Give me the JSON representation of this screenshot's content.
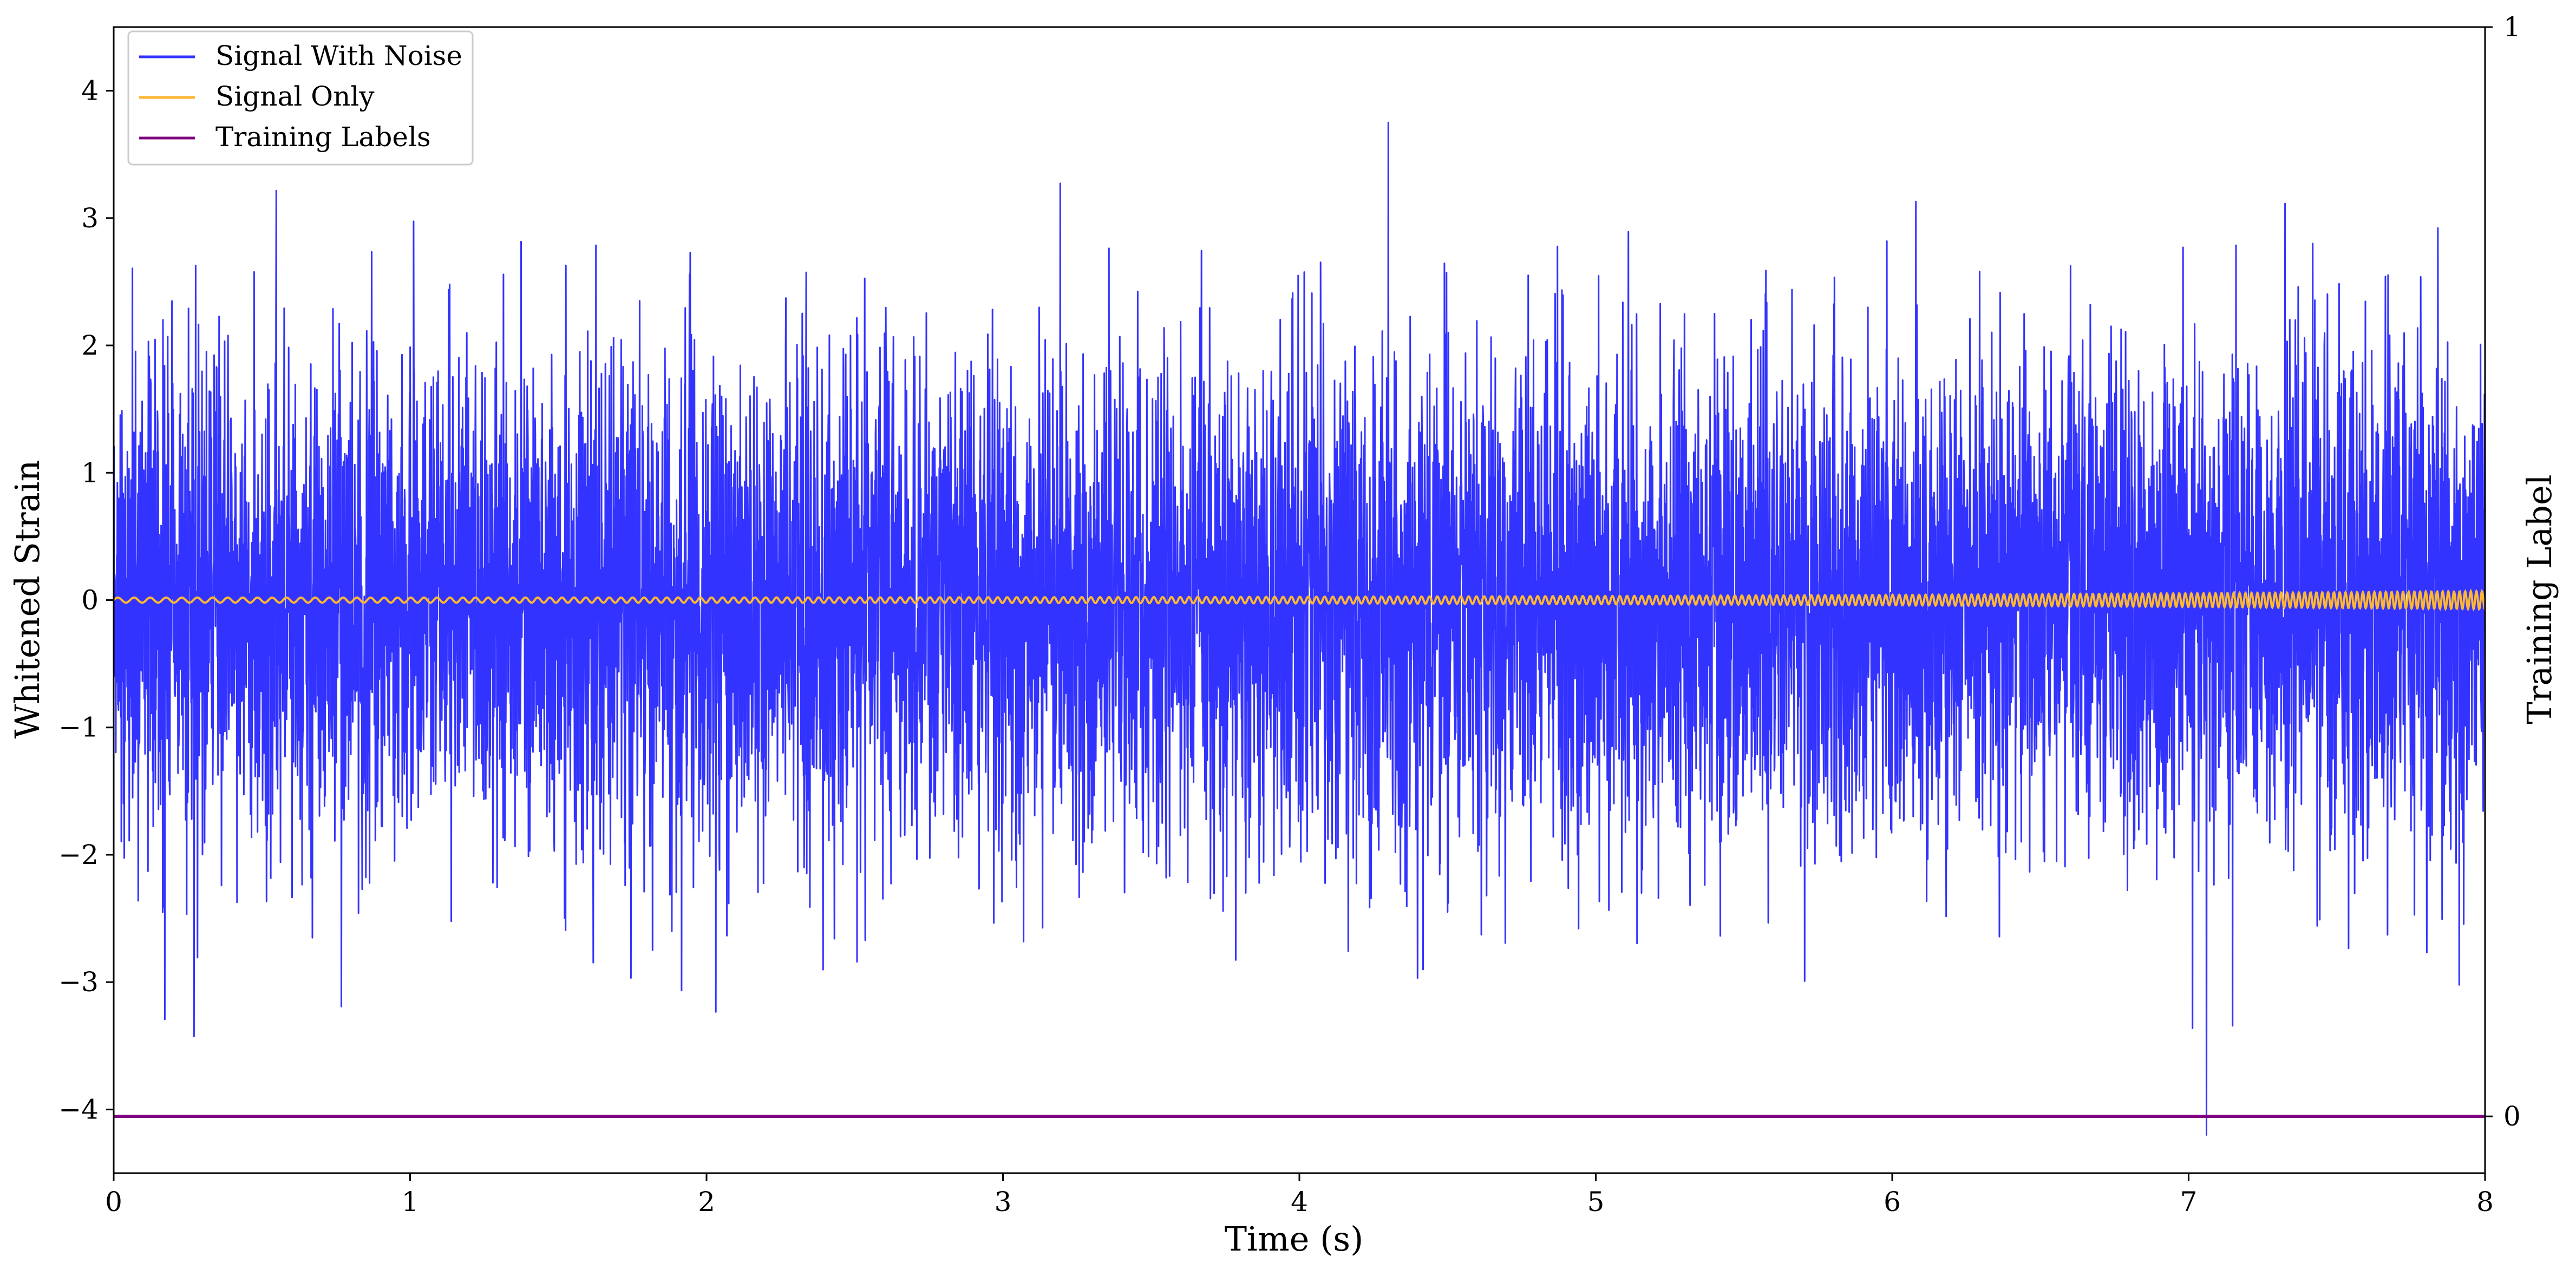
{
  "chart_data": {
    "type": "line",
    "xlabel": "Time (s)",
    "ylabel": "Whitened Strain",
    "y2label": "Training Label",
    "xlim": [
      0,
      8
    ],
    "ylim": [
      -4.5,
      4.5
    ],
    "y2lim": [
      -0.0521,
      1.0
    ],
    "xticks": [
      0,
      1,
      2,
      3,
      4,
      5,
      6,
      7,
      8
    ],
    "yticks": [
      -4,
      -3,
      -2,
      -1,
      0,
      1,
      2,
      3,
      4
    ],
    "y2ticks": [
      0,
      1
    ],
    "grid": false,
    "legend_position": "top-left",
    "series": [
      {
        "name": "Signal With Noise",
        "color": "#3333ff",
        "axis": "left",
        "kind": "noise",
        "std": 0.95,
        "min": -4.2,
        "max": 3.75
      },
      {
        "name": "Signal Only",
        "color": "#ffb733",
        "axis": "left",
        "kind": "chirp",
        "amplitude_start": 0.02,
        "amplitude_end": 0.07
      },
      {
        "name": "Training Labels",
        "color": "#800080",
        "axis": "right",
        "kind": "constant",
        "value": 0
      }
    ]
  }
}
